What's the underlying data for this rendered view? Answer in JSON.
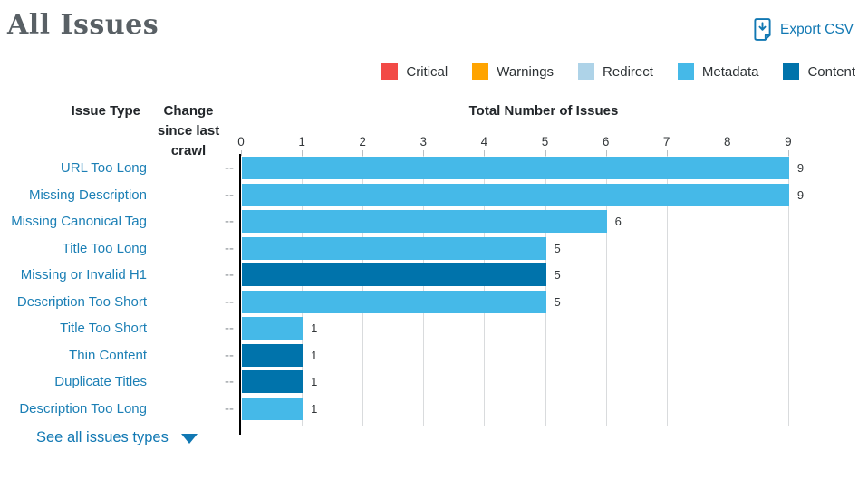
{
  "header": {
    "title": "All Issues",
    "export_label": "Export CSV"
  },
  "colors": {
    "accent_blue": "#1178b3",
    "link_blue": "#1b7fb5",
    "title_gray": "#596065",
    "change_gray": "#8b9196",
    "gridline": "#d9dbdd"
  },
  "legend": [
    {
      "label": "Critical",
      "color": "#f24a46"
    },
    {
      "label": "Warnings",
      "color": "#ffa400"
    },
    {
      "label": "Redirect",
      "color": "#aed3e8"
    },
    {
      "label": "Metadata",
      "color": "#45b9e8"
    },
    {
      "label": "Content",
      "color": "#0073ab"
    }
  ],
  "chart_data": {
    "type": "bar",
    "orientation": "horizontal",
    "col_headers": {
      "issue_type": "Issue Type",
      "change": "Change since last crawl",
      "total": "Total Number of Issues"
    },
    "xlim": [
      0,
      9
    ],
    "x_ticks": [
      0,
      1,
      2,
      3,
      4,
      5,
      6,
      7,
      8,
      9
    ],
    "grid": true,
    "rows": [
      {
        "label": "URL Too Long",
        "change": "--",
        "value": 9,
        "category": "Metadata"
      },
      {
        "label": "Missing Description",
        "change": "--",
        "value": 9,
        "category": "Metadata"
      },
      {
        "label": "Missing Canonical Tag",
        "change": "--",
        "value": 6,
        "category": "Metadata"
      },
      {
        "label": "Title Too Long",
        "change": "--",
        "value": 5,
        "category": "Metadata"
      },
      {
        "label": "Missing or Invalid H1",
        "change": "--",
        "value": 5,
        "category": "Content"
      },
      {
        "label": "Description Too Short",
        "change": "--",
        "value": 5,
        "category": "Metadata"
      },
      {
        "label": "Title Too Short",
        "change": "--",
        "value": 1,
        "category": "Metadata"
      },
      {
        "label": "Thin Content",
        "change": "--",
        "value": 1,
        "category": "Content"
      },
      {
        "label": "Duplicate Titles",
        "change": "--",
        "value": 1,
        "category": "Content"
      },
      {
        "label": "Description Too Long",
        "change": "--",
        "value": 1,
        "category": "Metadata"
      }
    ]
  },
  "footer": {
    "see_all_label": "See all issues types"
  }
}
